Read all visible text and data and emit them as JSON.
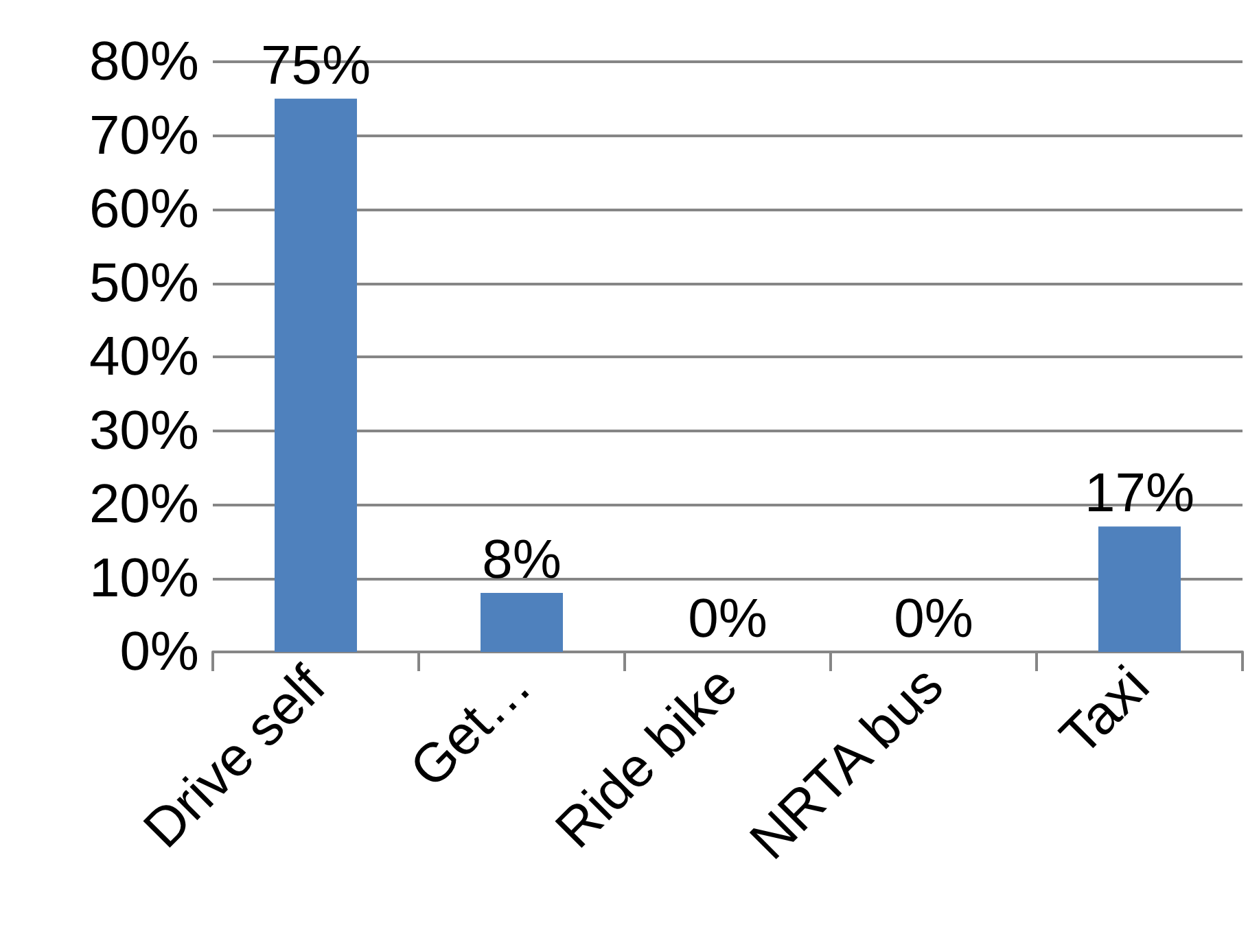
{
  "chart_data": {
    "type": "bar",
    "categories": [
      "Drive self",
      "Get…",
      "Ride bike",
      "NRTA bus",
      "Taxi"
    ],
    "values": [
      75,
      8,
      0,
      0,
      17
    ],
    "color": "#4f81bd",
    "value_labels": [
      "75%",
      "8%",
      "0%",
      "0%",
      "17%"
    ],
    "ylim": [
      0,
      80
    ],
    "yticks": [
      {
        "value": 0,
        "label": "0%"
      },
      {
        "value": 10,
        "label": "10%"
      },
      {
        "value": 20,
        "label": "20%"
      },
      {
        "value": 30,
        "label": "30%"
      },
      {
        "value": 40,
        "label": "40%"
      },
      {
        "value": 50,
        "label": "50%"
      },
      {
        "value": 60,
        "label": "60%"
      },
      {
        "value": 70,
        "label": "70%"
      },
      {
        "value": 80,
        "label": "80%"
      }
    ],
    "grid": "y"
  }
}
